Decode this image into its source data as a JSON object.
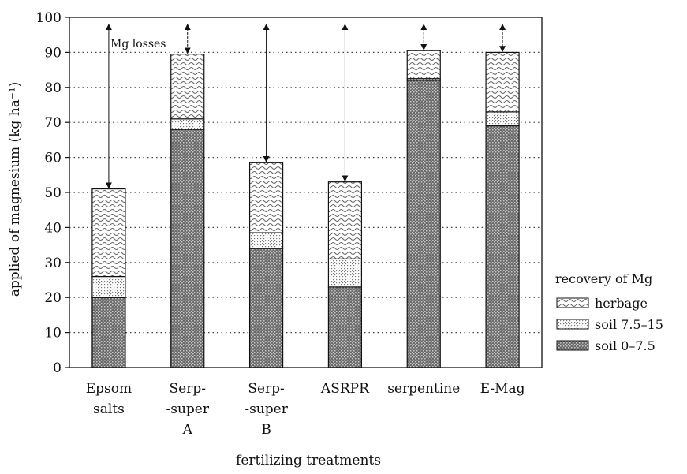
{
  "chart_data": {
    "type": "bar",
    "stacked": true,
    "categories": [
      [
        "Epsom",
        "salts"
      ],
      [
        "Serp-",
        "-super",
        "A"
      ],
      [
        "Serp-",
        "-super",
        "B"
      ],
      [
        "ASRPR"
      ],
      [
        "serpentine"
      ],
      [
        "E-Mag"
      ]
    ],
    "series": [
      {
        "name": "soil 0–7.5",
        "values": [
          20,
          68,
          34,
          23,
          82,
          69
        ]
      },
      {
        "name": "soil 7.5–15",
        "values": [
          6,
          3,
          4.5,
          8,
          0.5,
          4
        ]
      },
      {
        "name": "herbage",
        "values": [
          25,
          18.5,
          20,
          22,
          8,
          17
        ]
      }
    ],
    "applied": [
      98,
      98,
      98,
      98,
      98,
      98
    ],
    "xlabel": "fertilizing treatments",
    "ylabel": "applied of magnesium (kg ha⁻¹)",
    "ylim": [
      0,
      100
    ],
    "yticks": [
      0,
      10,
      20,
      30,
      40,
      50,
      60,
      70,
      80,
      90,
      100
    ],
    "grid": "horizontal dotted",
    "legend": {
      "title": "recovery of Mg",
      "placement": "right",
      "entries": [
        "herbage",
        "soil  7.5–15",
        "soil  0–7.5"
      ]
    },
    "annotation": "Mg losses"
  }
}
